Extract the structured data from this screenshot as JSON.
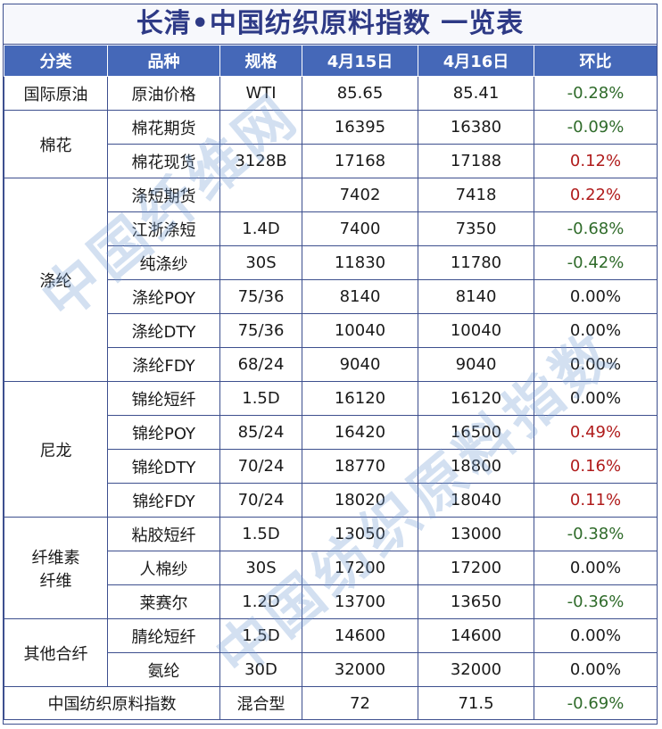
{
  "title": "长清•中国纺织原料指数 一览表",
  "headers": [
    "分类",
    "品种",
    "规格",
    "4月15日",
    "4月16日",
    "环比"
  ],
  "colors": {
    "header_bg": "#4568b8",
    "title": "#2e3a86",
    "positive": "#b01c1c",
    "negative": "#2f6b2a",
    "border": "#3d4f8e"
  },
  "groups": [
    {
      "category": "国际原油",
      "rows": [
        {
          "name": "原油价格",
          "spec": "WTI",
          "d1": "85.65",
          "d2": "85.41",
          "change": "-0.28%"
        }
      ]
    },
    {
      "category": "棉花",
      "rows": [
        {
          "name": "棉花期货",
          "spec": "",
          "d1": "16395",
          "d2": "16380",
          "change": "-0.09%"
        },
        {
          "name": "棉花现货",
          "spec": "3128B",
          "d1": "17168",
          "d2": "17188",
          "change": "0.12%"
        }
      ]
    },
    {
      "category": "涤纶",
      "rows": [
        {
          "name": "涤短期货",
          "spec": "",
          "d1": "7402",
          "d2": "7418",
          "change": "0.22%"
        },
        {
          "name": "江浙涤短",
          "spec": "1.4D",
          "d1": "7400",
          "d2": "7350",
          "change": "-0.68%"
        },
        {
          "name": "纯涤纱",
          "spec": "30S",
          "d1": "11830",
          "d2": "11780",
          "change": "-0.42%"
        },
        {
          "name": "涤纶POY",
          "spec": "75/36",
          "d1": "8140",
          "d2": "8140",
          "change": "0.00%"
        },
        {
          "name": "涤纶DTY",
          "spec": "75/36",
          "d1": "10040",
          "d2": "10040",
          "change": "0.00%"
        },
        {
          "name": "涤纶FDY",
          "spec": "68/24",
          "d1": "9040",
          "d2": "9040",
          "change": "0.00%"
        }
      ]
    },
    {
      "category": "尼龙",
      "rows": [
        {
          "name": "锦纶短纤",
          "spec": "1.5D",
          "d1": "16120",
          "d2": "16120",
          "change": "0.00%"
        },
        {
          "name": "锦纶POY",
          "spec": "85/24",
          "d1": "16420",
          "d2": "16500",
          "change": "0.49%"
        },
        {
          "name": "锦纶DTY",
          "spec": "70/24",
          "d1": "18770",
          "d2": "18800",
          "change": "0.16%"
        },
        {
          "name": "锦纶FDY",
          "spec": "70/24",
          "d1": "18020",
          "d2": "18040",
          "change": "0.11%"
        }
      ]
    },
    {
      "category": "纤维素\n纤维",
      "rows": [
        {
          "name": "粘胶短纤",
          "spec": "1.5D",
          "d1": "13050",
          "d2": "13000",
          "change": "-0.38%"
        },
        {
          "name": "人棉纱",
          "spec": "30S",
          "d1": "17200",
          "d2": "17200",
          "change": "0.00%"
        },
        {
          "name": "莱赛尔",
          "spec": "1.2D",
          "d1": "13700",
          "d2": "13650",
          "change": "-0.36%"
        }
      ]
    },
    {
      "category": "其他合纤",
      "rows": [
        {
          "name": "腈纶短纤",
          "spec": "1.5D",
          "d1": "14600",
          "d2": "14600",
          "change": "0.00%"
        },
        {
          "name": "氨纶",
          "spec": "30D",
          "d1": "32000",
          "d2": "32000",
          "change": "0.00%"
        }
      ]
    }
  ],
  "summary": {
    "name": "中国纺织原料指数",
    "spec": "混合型",
    "d1": "72",
    "d2": "71.5",
    "change": "-0.69%"
  },
  "watermarks": [
    "中国纤维网",
    "中国纺织原料指数"
  ]
}
